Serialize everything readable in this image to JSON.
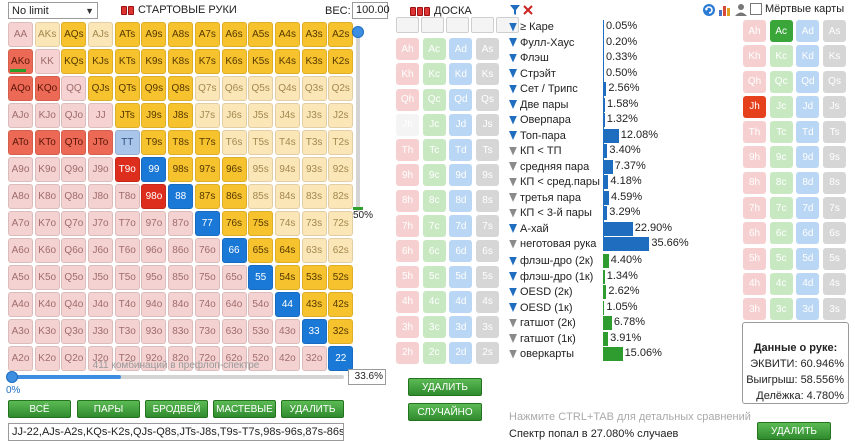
{
  "game_type": {
    "value": "No limit"
  },
  "starting_hands": {
    "title": "СТАРТОВЫЕ РУКИ"
  },
  "weight": {
    "label": "ВЕС:",
    "value": "100.00"
  },
  "slider": {
    "v_pct_label": "50%",
    "h_value": "33.6%",
    "zero_label": "0%",
    "h_fraction": 0.336,
    "v_fraction": 0.5
  },
  "combo_caption": "411 комбинаций в префлоп-спектре",
  "range_buttons": {
    "all": "ВСЁ",
    "pairs": "ПАРЫ",
    "broadway": "БРОДВЕЙ",
    "suited": "МАСТЕВЫЕ",
    "delete": "УДАЛИТЬ"
  },
  "range_text": "JJ-22,AJs-A2s,KQs-K2s,QJs-Q8s,JTs-J8s,T9s-T7s,98s-96s,87s-86s,7",
  "board": {
    "title": "ДОСКА",
    "delete": "УДАЛИТЬ",
    "random": "СЛУЧАЙНО"
  },
  "dead_cards": {
    "title": "Мёртвые карты"
  },
  "dead_delete": "УДАЛИТЬ",
  "hint_text": "Нажмите CTRL+TAB для детальных сравнений",
  "hit_text": "Спектр попал в 27.080% случаев",
  "hand_info": {
    "title": "Данные о руке:",
    "equity": "ЭКВИТИ: 60.946%",
    "win": "Выигрыш: 58.556%",
    "split": "Делёжка: 4.780%"
  },
  "hand_grid": [
    [
      "AA",
      "AKs",
      "AQs",
      "AJs",
      "ATs",
      "A9s",
      "A8s",
      "A7s",
      "A6s",
      "A5s",
      "A4s",
      "A3s",
      "A2s"
    ],
    [
      "AKo",
      "KK",
      "KQs",
      "KJs",
      "KTs",
      "K9s",
      "K8s",
      "K7s",
      "K6s",
      "K5s",
      "K4s",
      "K3s",
      "K2s"
    ],
    [
      "AQo",
      "KQo",
      "QQ",
      "QJs",
      "QTs",
      "Q9s",
      "Q8s",
      "Q7s",
      "Q6s",
      "Q5s",
      "Q4s",
      "Q3s",
      "Q2s"
    ],
    [
      "AJo",
      "KJo",
      "QJo",
      "JJ",
      "JTs",
      "J9s",
      "J8s",
      "J7s",
      "J6s",
      "J5s",
      "J4s",
      "J3s",
      "J2s"
    ],
    [
      "ATo",
      "KTo",
      "QTo",
      "JTo",
      "TT",
      "T9s",
      "T8s",
      "T7s",
      "T6s",
      "T5s",
      "T4s",
      "T3s",
      "T2s"
    ],
    [
      "A9o",
      "K9o",
      "Q9o",
      "J9o",
      "T9o",
      "99",
      "98s",
      "97s",
      "96s",
      "95s",
      "94s",
      "93s",
      "92s"
    ],
    [
      "A8o",
      "K8o",
      "Q8o",
      "J8o",
      "T8o",
      "98o",
      "88",
      "87s",
      "86s",
      "85s",
      "84s",
      "83s",
      "82s"
    ],
    [
      "A7o",
      "K7o",
      "Q7o",
      "J7o",
      "T7o",
      "97o",
      "87o",
      "77",
      "76s",
      "75s",
      "74s",
      "73s",
      "72s"
    ],
    [
      "A6o",
      "K6o",
      "Q6o",
      "J6o",
      "T6o",
      "96o",
      "86o",
      "76o",
      "66",
      "65s",
      "64s",
      "63s",
      "62s"
    ],
    [
      "A5o",
      "K5o",
      "Q5o",
      "J5o",
      "T5o",
      "95o",
      "85o",
      "75o",
      "65o",
      "55",
      "54s",
      "53s",
      "52s"
    ],
    [
      "A4o",
      "K4o",
      "Q4o",
      "J4o",
      "T4o",
      "94o",
      "84o",
      "74o",
      "64o",
      "54o",
      "44",
      "43s",
      "42s"
    ],
    [
      "A3o",
      "K3o",
      "Q3o",
      "J3o",
      "T3o",
      "93o",
      "83o",
      "73o",
      "63o",
      "53o",
      "43o",
      "33",
      "32s"
    ],
    [
      "A2o",
      "K2o",
      "Q2o",
      "J2o",
      "T2o",
      "92o",
      "82o",
      "72o",
      "62o",
      "52o",
      "42o",
      "32o",
      "22"
    ]
  ],
  "hand_states": [
    "p0 s0 s1 s0 s1 s1 s1 s1 s1 s1 s1 s1 s1",
    "ps1 p0 s1 s1 s1 s1 s1 s1 s1 s1 s1 s1 s1",
    "ps1 ps1 p0 s1 s1 s1 s1 s0 s0 s0 s0 s0 s0",
    "ps0 ps0 ps0 p0 s1 s1 s1 s0 s0 s0 s0 s0 s0",
    "ps1 ps1 ps1 ps1 p1 s1 s1 s1 s0 s0 s0 s0 s0",
    "ps0 ps0 ps0 ps0 dkred diag s1 s1 s1 s0 s0 s0 s0",
    "ps0 ps0 ps0 ps0 ps0 dkred diag s1 s1 s0 s0 s0 s0",
    "ps0 ps0 ps0 ps0 ps0 ps0 ps0 diag s1 s1 s0 s0 s0",
    "ps0 ps0 ps0 ps0 ps0 ps0 ps0 ps0 diag s1 s1 s0 s0",
    "ps0 ps0 ps0 ps0 ps0 ps0 ps0 ps0 ps0 diag s1 s1 s1",
    "ps0 ps0 ps0 ps0 ps0 ps0 ps0 ps0 ps0 ps0 diag s1 s1",
    "ps0 ps0 ps0 ps0 ps0 ps0 ps0 ps0 ps0 ps0 ps0 diag s1",
    "ps0 ps0 ps0 ps0 ps0 ps0 ps0 ps0 ps0 ps0 ps0 ps0 diag"
  ],
  "hand_marker": "AKo",
  "card_ranks": [
    "A",
    "K",
    "Q",
    "J",
    "T",
    "9",
    "8",
    "7",
    "6",
    "5",
    "4",
    "3",
    "2"
  ],
  "card_suits": [
    "h",
    "c",
    "d",
    "s"
  ],
  "board_selected": [],
  "board_blank": [
    "Ah"
  ],
  "dead_selected": {
    "Ac": "green",
    "Jh": "red"
  },
  "stats": {
    "made": [
      {
        "label": "≥ Каре",
        "value": "0.05%",
        "pct": 0.05,
        "tri": "blue"
      },
      {
        "label": "Фулл-Хаус",
        "value": "0.20%",
        "pct": 0.2,
        "tri": "blue"
      },
      {
        "label": "Флэш",
        "value": "0.33%",
        "pct": 0.33,
        "tri": "blue"
      },
      {
        "label": "Стрэйт",
        "value": "0.50%",
        "pct": 0.5,
        "tri": "blue"
      },
      {
        "label": "Сет / Трипс",
        "value": "2.56%",
        "pct": 2.56,
        "tri": "blue"
      },
      {
        "label": "Две пары",
        "value": "1.58%",
        "pct": 1.58,
        "tri": "blue"
      },
      {
        "label": "Оверпара",
        "value": "1.32%",
        "pct": 1.32,
        "tri": "blue"
      },
      {
        "label": "Топ-пара",
        "value": "12.08%",
        "pct": 12.08,
        "tri": "blue"
      },
      {
        "label": "КП < ТП",
        "value": "3.40%",
        "pct": 3.4,
        "tri": "grey"
      },
      {
        "label": "средняя пара",
        "value": "7.37%",
        "pct": 7.37,
        "tri": "grey"
      },
      {
        "label": "КП < сред.пары",
        "value": "4.18%",
        "pct": 4.18,
        "tri": "grey"
      },
      {
        "label": "третья пара",
        "value": "4.59%",
        "pct": 4.59,
        "tri": "grey"
      },
      {
        "label": "КП < 3-й пары",
        "value": "3.29%",
        "pct": 3.29,
        "tri": "grey"
      },
      {
        "label": "А-хай",
        "value": "22.90%",
        "pct": 22.9,
        "tri": "blue"
      },
      {
        "label": "неготовая рука",
        "value": "35.66%",
        "pct": 35.66,
        "tri": "grey"
      }
    ],
    "draws": [
      {
        "label": "флэш-дро (2к)",
        "value": "4.40%",
        "pct": 4.4,
        "tri": "blue"
      },
      {
        "label": "флэш-дро (1к)",
        "value": "1.34%",
        "pct": 1.34,
        "tri": "blue"
      },
      {
        "label": "OESD (2к)",
        "value": "2.62%",
        "pct": 2.62,
        "tri": "blue"
      },
      {
        "label": "OESD (1к)",
        "value": "1.05%",
        "pct": 1.05,
        "tri": "blue"
      },
      {
        "label": "гатшот (2к)",
        "value": "6.78%",
        "pct": 6.78,
        "tri": "grey"
      },
      {
        "label": "гатшот (1к)",
        "value": "3.91%",
        "pct": 3.91,
        "tri": "grey"
      },
      {
        "label": "оверкарты",
        "value": "15.06%",
        "pct": 15.06,
        "tri": "grey"
      }
    ]
  },
  "icons": {
    "filter": "filter-icon",
    "clear": "clear-filter-icon",
    "refresh": "refresh-icon",
    "chart": "bar-chart-icon",
    "user": "user-icon"
  }
}
